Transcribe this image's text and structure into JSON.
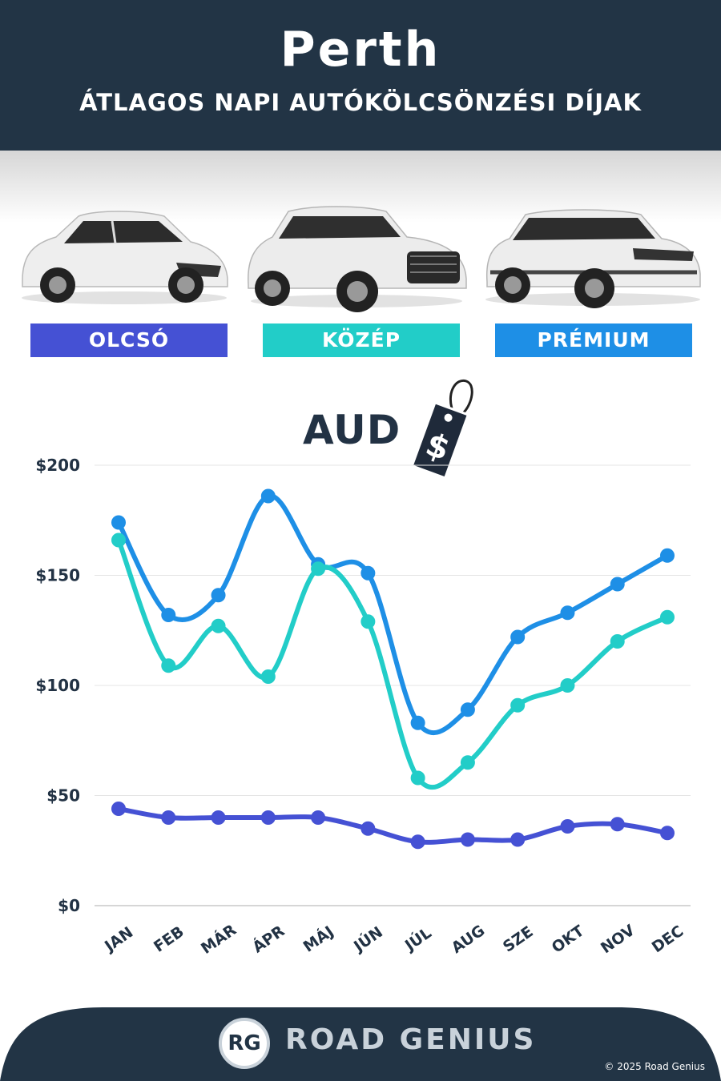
{
  "header": {
    "title": "Perth",
    "subtitle": "ÁTLAGOS NAPI AUTÓKÖLCSÖNZÉSI DÍJAK"
  },
  "categories": [
    {
      "label": "OLCSÓ",
      "color": "#4551d4"
    },
    {
      "label": "KÖZÉP",
      "color": "#22cdc8"
    },
    {
      "label": "PRÉMIUM",
      "color": "#1e8fe6"
    }
  ],
  "currency_label": "AUD",
  "tag_symbol": "$",
  "chart_data": {
    "type": "line",
    "x": [
      "JAN",
      "FEB",
      "MÁR",
      "ÁPR",
      "MÁJ",
      "JÚN",
      "JÚL",
      "AUG",
      "SZE",
      "OKT",
      "NOV",
      "DEC"
    ],
    "y_ticks": [
      "$0",
      "$50",
      "$100",
      "$150",
      "$200"
    ],
    "ylim": [
      0,
      200
    ],
    "grid": true,
    "series": [
      {
        "key": "premium",
        "color": "#1e8fe6",
        "values": [
          174,
          132,
          141,
          186,
          155,
          151,
          83,
          89,
          122,
          133,
          146,
          159
        ]
      },
      {
        "key": "kozep",
        "color": "#22cdc8",
        "values": [
          166,
          109,
          127,
          104,
          153,
          129,
          58,
          65,
          91,
          100,
          120,
          131
        ]
      },
      {
        "key": "olcso",
        "color": "#4551d4",
        "values": [
          44,
          40,
          40,
          40,
          40,
          35,
          29,
          30,
          30,
          36,
          37,
          33
        ]
      }
    ]
  },
  "footer": {
    "logo_text": "RG",
    "brand": "ROAD GENIUS",
    "copyright": "© 2025 Road Genius"
  }
}
